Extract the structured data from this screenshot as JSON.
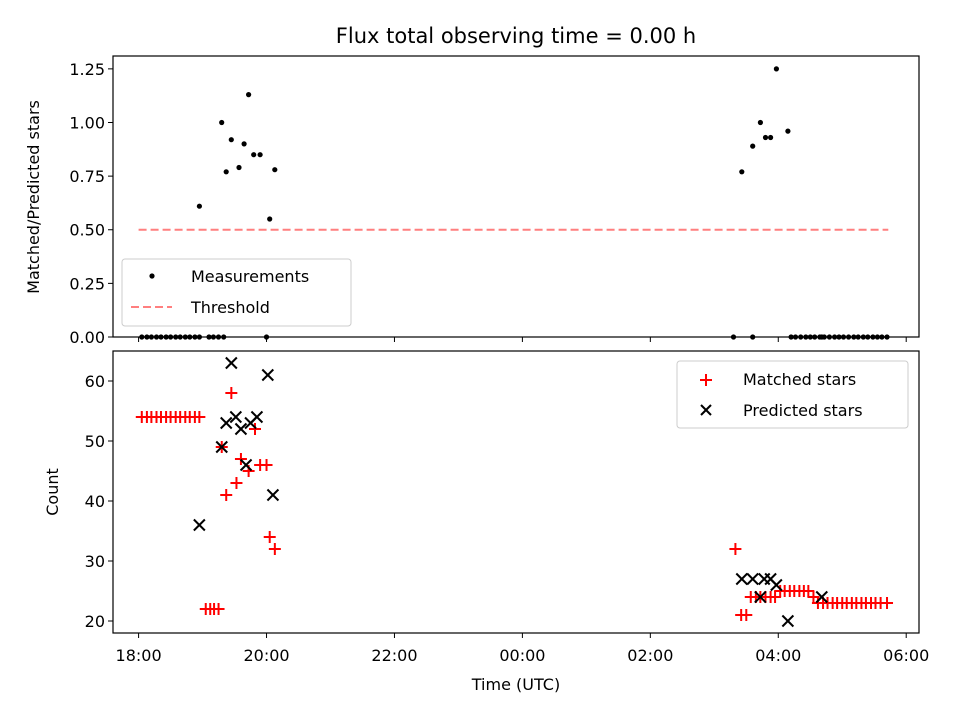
{
  "title": "Flux total observing time = 0.00 h",
  "colors": {
    "measurement": "#000000",
    "threshold": "#ff7f7f",
    "matched": "#ff0000",
    "predicted": "#000000"
  },
  "chart_data": [
    {
      "type": "scatter",
      "panel": "top",
      "title": "Flux total observing time = 0.00 h",
      "xlabel": "",
      "ylabel": "Matched/Predicted stars",
      "x_units": "hours since 18:00 UTC",
      "xlim": [
        -0.4,
        12.2
      ],
      "ylim": [
        0,
        1.31
      ],
      "yticks": [
        0.0,
        0.25,
        0.5,
        0.75,
        1.0,
        1.25
      ],
      "ytick_labels": [
        "0.00",
        "0.25",
        "0.50",
        "0.75",
        "1.00",
        "1.25"
      ],
      "legend": {
        "position": "lower-left"
      },
      "series": [
        {
          "name": "Measurements",
          "marker": "dot",
          "x": [
            0.05,
            0.13,
            0.2,
            0.28,
            0.35,
            0.43,
            0.5,
            0.58,
            0.65,
            0.73,
            0.8,
            0.88,
            0.95,
            1.1,
            1.17,
            1.25,
            1.33,
            2.0,
            0.95,
            1.3,
            1.37,
            1.45,
            1.57,
            1.65,
            1.72,
            1.8,
            1.9,
            2.05,
            2.13,
            9.43,
            9.6,
            9.72,
            9.8,
            9.88,
            9.97,
            10.15,
            10.68,
            9.3,
            9.6,
            10.2,
            10.27,
            10.35,
            10.43,
            10.5,
            10.57,
            10.65,
            10.72,
            10.8,
            10.88,
            10.95,
            11.02,
            11.1,
            11.18,
            11.25,
            11.33,
            11.4,
            11.48,
            11.55,
            11.62,
            11.7
          ],
          "y": [
            0,
            0,
            0,
            0,
            0,
            0,
            0,
            0,
            0,
            0,
            0,
            0,
            0,
            0,
            0,
            0,
            0,
            0,
            0.61,
            1.0,
            0.77,
            0.92,
            0.79,
            0.9,
            1.13,
            0.85,
            0.85,
            0.55,
            0.78,
            0.77,
            0.89,
            1.0,
            0.93,
            0.93,
            1.25,
            0.96,
            0.0,
            0,
            0,
            0,
            0,
            0,
            0,
            0,
            0,
            0,
            0,
            0,
            0,
            0,
            0,
            0,
            0,
            0,
            0,
            0,
            0,
            0,
            0,
            0
          ]
        },
        {
          "name": "Threshold",
          "line_style": "dashed",
          "x": [
            0.0,
            11.72
          ],
          "y": [
            0.5,
            0.5
          ]
        }
      ]
    },
    {
      "type": "scatter",
      "panel": "bottom",
      "xlabel": "Time (UTC)",
      "ylabel": "Count",
      "xlim": [
        -0.4,
        12.2
      ],
      "ylim": [
        18,
        65
      ],
      "yticks": [
        20,
        30,
        40,
        50,
        60
      ],
      "xticks": [
        0,
        2,
        4,
        6,
        8,
        10,
        12
      ],
      "xtick_labels": [
        "18:00",
        "20:00",
        "22:00",
        "00:00",
        "02:00",
        "04:00",
        "06:00"
      ],
      "legend": {
        "position": "upper-right"
      },
      "series": [
        {
          "name": "Matched stars",
          "marker": "plus",
          "x": [
            0.05,
            0.13,
            0.2,
            0.28,
            0.35,
            0.43,
            0.5,
            0.58,
            0.65,
            0.73,
            0.8,
            0.88,
            0.95,
            1.05,
            1.12,
            1.18,
            1.25,
            1.3,
            1.37,
            1.45,
            1.53,
            1.6,
            1.72,
            1.82,
            1.9,
            2.0,
            2.05,
            2.13,
            9.33,
            9.42,
            9.5,
            9.57,
            9.65,
            9.72,
            9.8,
            9.88,
            9.95,
            10.03,
            10.1,
            10.18,
            10.25,
            10.33,
            10.4,
            10.47,
            10.55,
            10.62,
            10.7,
            10.77,
            10.85,
            10.92,
            11.0,
            11.07,
            11.15,
            11.22,
            11.3,
            11.37,
            11.45,
            11.52,
            11.6,
            11.7
          ],
          "y": [
            54,
            54,
            54,
            54,
            54,
            54,
            54,
            54,
            54,
            54,
            54,
            54,
            54,
            22,
            22,
            22,
            22,
            49,
            41,
            58,
            43,
            47,
            45,
            52,
            46,
            46,
            34,
            32,
            32,
            21,
            21,
            24,
            24,
            24,
            24,
            24,
            24,
            25,
            25,
            25,
            25,
            25,
            25,
            25,
            24,
            23,
            23,
            23,
            23,
            23,
            23,
            23,
            23,
            23,
            23,
            23,
            23,
            23,
            23,
            23
          ]
        },
        {
          "name": "Predicted stars",
          "marker": "x",
          "x": [
            0.95,
            1.3,
            1.37,
            1.45,
            1.52,
            1.6,
            1.68,
            1.75,
            1.85,
            2.02,
            2.1,
            9.43,
            9.6,
            9.72,
            9.78,
            9.88,
            9.97,
            10.15,
            10.68
          ],
          "y": [
            36,
            49,
            53,
            63,
            54,
            52,
            46,
            53,
            54,
            61,
            41,
            27,
            27,
            24,
            27,
            27,
            26,
            20,
            24
          ]
        }
      ]
    }
  ]
}
